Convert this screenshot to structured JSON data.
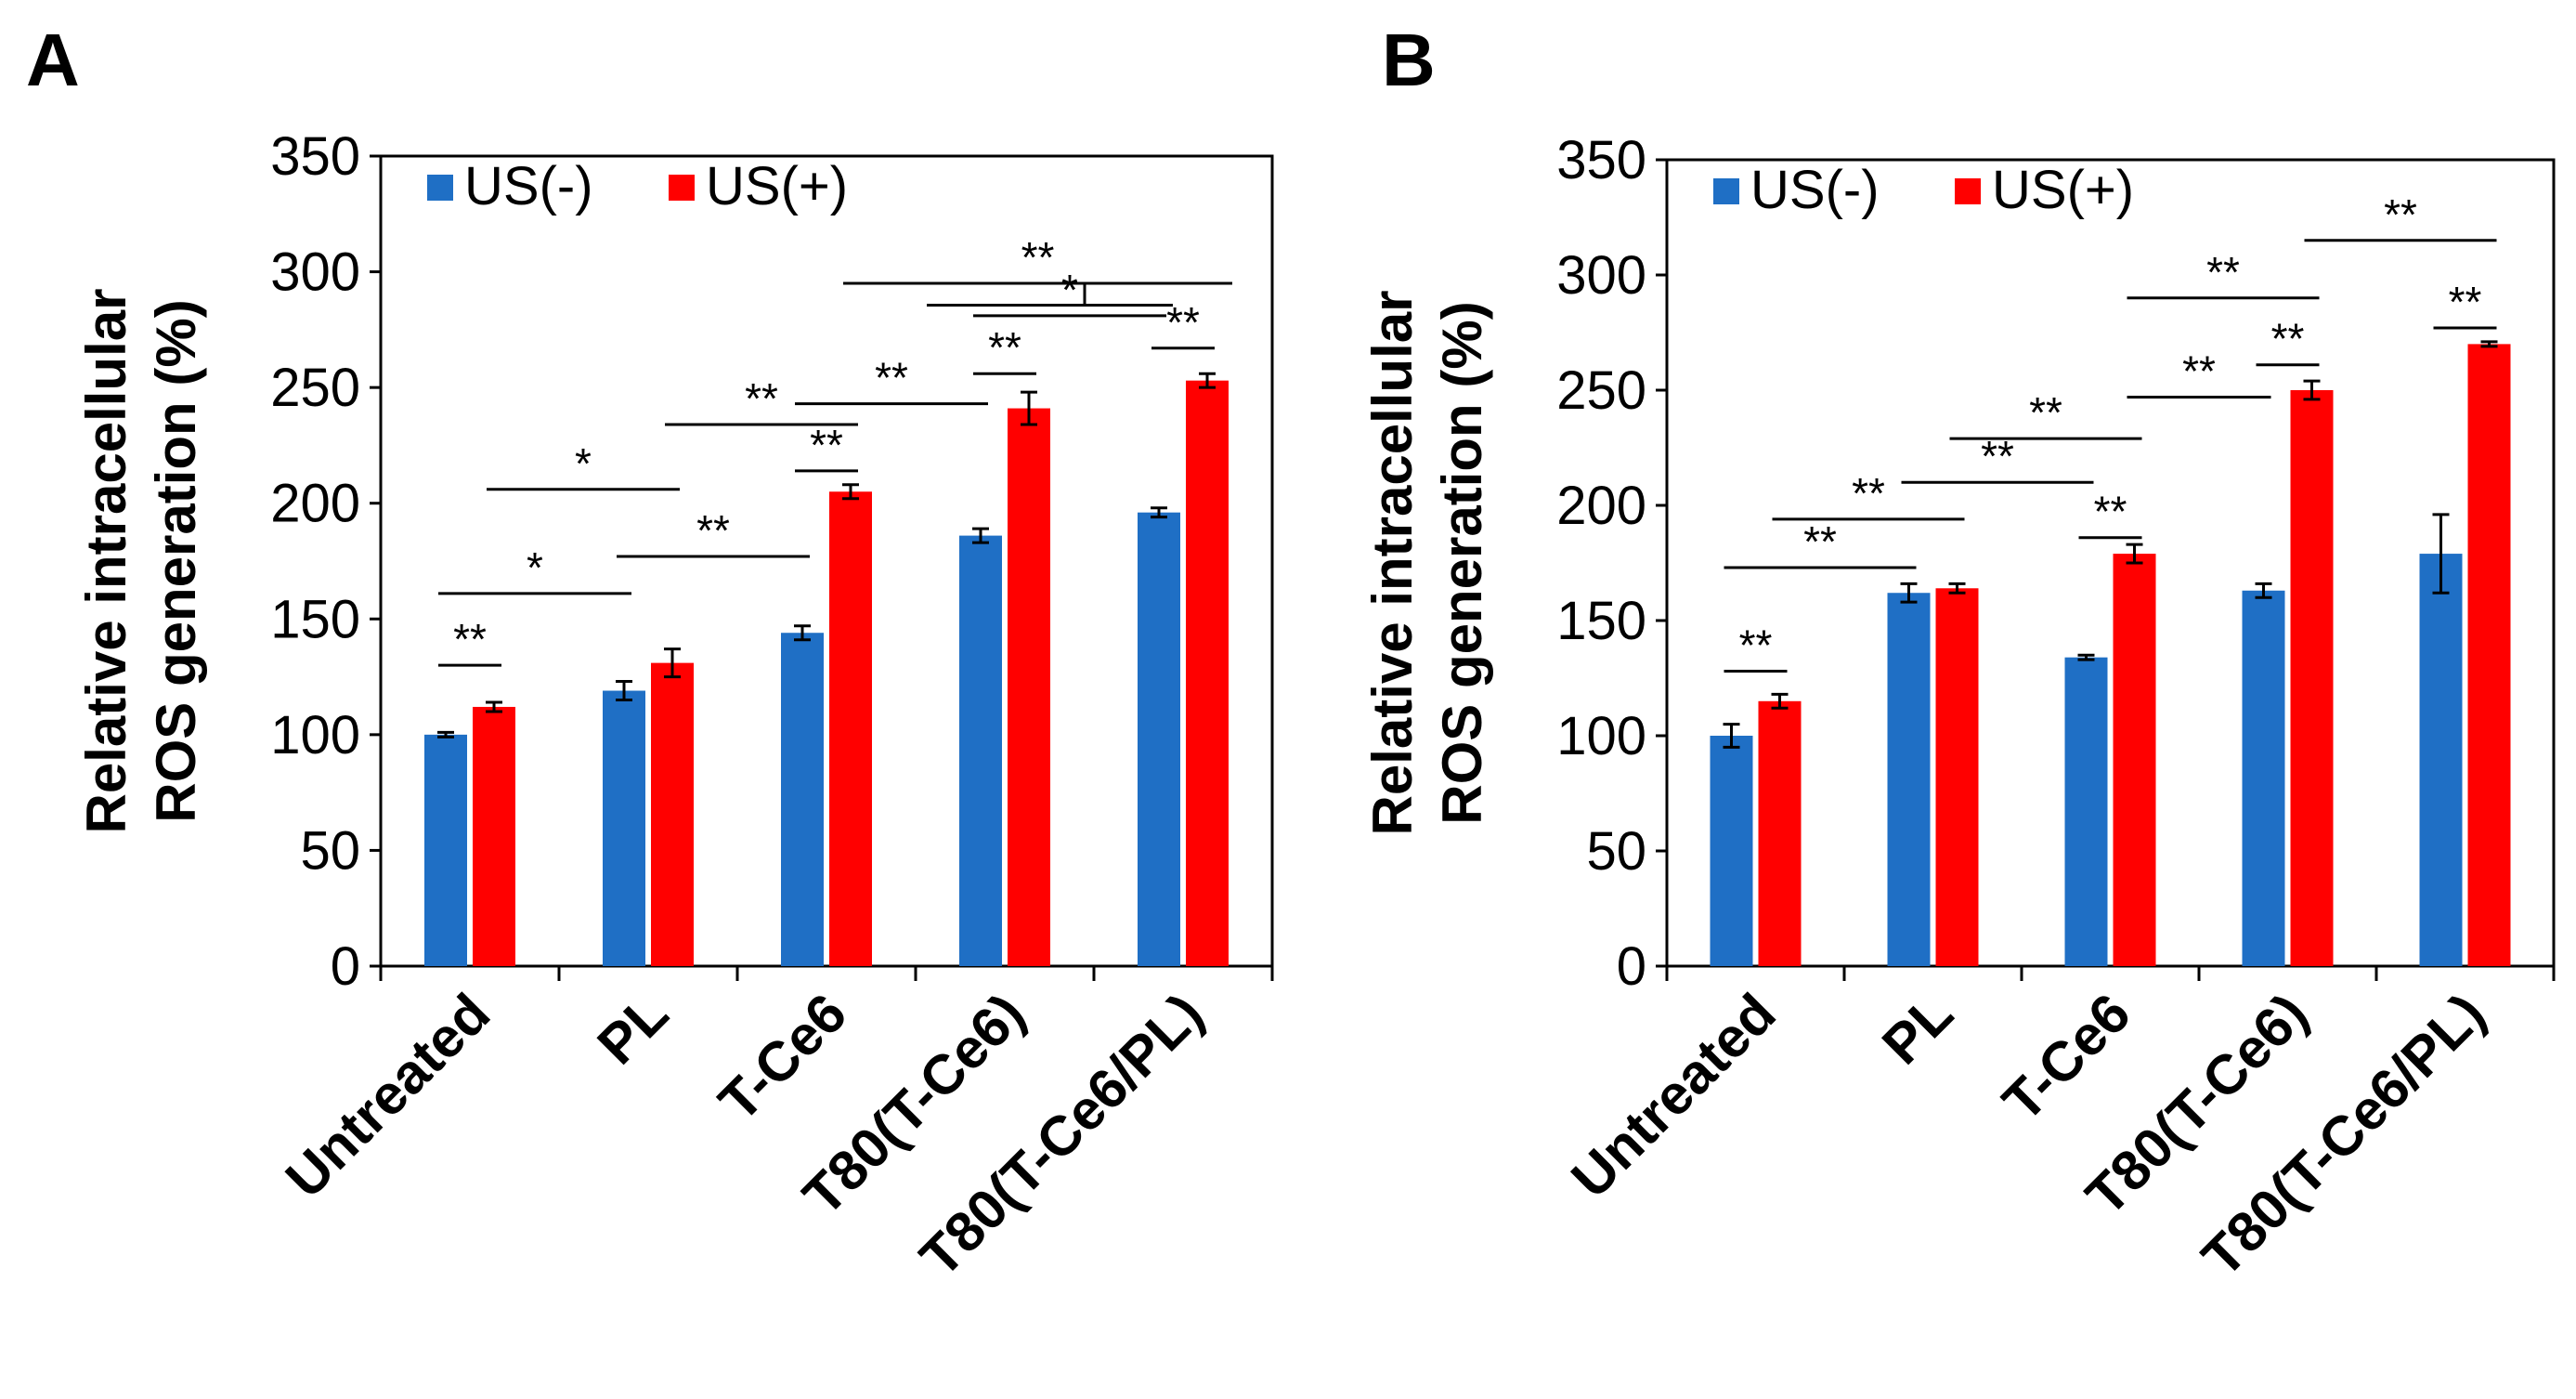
{
  "chart_data": [
    {
      "panel": "A",
      "type": "bar",
      "title": "",
      "xlabel": "",
      "ylabel": "Relative intracellular ROS generation (%)",
      "ylabel_lines": [
        "Relative intracellular",
        "ROS generation (%)"
      ],
      "ylim": [
        0,
        350
      ],
      "yticks": [
        0,
        50,
        100,
        150,
        200,
        250,
        300,
        350
      ],
      "legend_position": "top-left",
      "categories": [
        "Untreated",
        "PL",
        "T-Ce6",
        "T80(T-Ce6)",
        "T80(T-Ce6/PL)"
      ],
      "series": [
        {
          "name": "US(-)",
          "color": "#1f6fc5",
          "values": [
            100,
            119,
            144,
            186,
            196
          ],
          "errors": [
            1,
            4,
            3,
            3,
            2
          ]
        },
        {
          "name": "US(+)",
          "color": "#ff0000",
          "values": [
            112,
            131,
            205,
            241,
            253
          ],
          "errors": [
            2,
            6,
            3,
            7,
            3
          ]
        }
      ],
      "annotations": [
        {
          "text": "**",
          "x1": [
            0,
            0
          ],
          "x2": [
            0,
            1
          ],
          "y": 130
        },
        {
          "text": "*",
          "x1": [
            0,
            0
          ],
          "x2": [
            1,
            0
          ],
          "y": 161
        },
        {
          "text": "**",
          "x1": [
            1,
            0
          ],
          "x2": [
            2,
            0
          ],
          "y": 177
        },
        {
          "text": "*",
          "x1": [
            0,
            1
          ],
          "x2": [
            1,
            1
          ],
          "y": 206
        },
        {
          "text": "**",
          "x1": [
            2,
            0
          ],
          "x2": [
            2,
            1
          ],
          "y": 214
        },
        {
          "text": "**",
          "x1": [
            1,
            1
          ],
          "x2": [
            2,
            1
          ],
          "y": 234
        },
        {
          "text": "**",
          "x1": [
            2,
            0
          ],
          "x2": [
            3,
            0
          ],
          "y": 243
        },
        {
          "text": "**",
          "x1": [
            3,
            0
          ],
          "x2": [
            3,
            1
          ],
          "y": 256
        },
        {
          "text": "**",
          "x1": [
            4,
            0
          ],
          "x2": [
            4,
            1
          ],
          "y": 267
        },
        {
          "text": "*",
          "x1": [
            3,
            0
          ],
          "x2": [
            4,
            0
          ],
          "y": 281
        },
        {
          "text": "**",
          "x1": [
            2,
            1
          ],
          "x2": [
            4,
            0.5
          ],
          "y": 295,
          "bracket": true,
          "x_inner": [
            3,
            1
          ],
          "y_inner": 296
        }
      ]
    },
    {
      "panel": "B",
      "type": "bar",
      "title": "",
      "xlabel": "",
      "ylabel": "Relative intracellular ROS generation (%)",
      "ylabel_lines": [
        "Relative intracellular",
        "ROS generation (%)"
      ],
      "ylim": [
        0,
        350
      ],
      "yticks": [
        0,
        50,
        100,
        150,
        200,
        250,
        300,
        350
      ],
      "legend_position": "top-left",
      "categories": [
        "Untreated",
        "PL",
        "T-Ce6",
        "T80(T-Ce6)",
        "T80(T-Ce6/PL)"
      ],
      "series": [
        {
          "name": "US(-)",
          "color": "#1f6fc5",
          "values": [
            100,
            162,
            134,
            163,
            179
          ],
          "errors": [
            5,
            4,
            1,
            3,
            17
          ]
        },
        {
          "name": "US(+)",
          "color": "#ff0000",
          "values": [
            115,
            164,
            179,
            250,
            270
          ],
          "errors": [
            3,
            2,
            4,
            4,
            1
          ]
        }
      ],
      "annotations": [
        {
          "text": "**",
          "x1": [
            0,
            0
          ],
          "x2": [
            0,
            1
          ],
          "y": 128
        },
        {
          "text": "**",
          "x1": [
            0,
            0
          ],
          "x2": [
            1,
            0
          ],
          "y": 173
        },
        {
          "text": "**",
          "x1": [
            0,
            1
          ],
          "x2": [
            1,
            1
          ],
          "y": 194
        },
        {
          "text": "**",
          "x1": [
            2,
            0
          ],
          "x2": [
            2,
            1
          ],
          "y": 186
        },
        {
          "text": "**",
          "x1": [
            1,
            0
          ],
          "x2": [
            2,
            0
          ],
          "y": 210
        },
        {
          "text": "**",
          "x1": [
            1,
            1
          ],
          "x2": [
            2,
            1
          ],
          "y": 229
        },
        {
          "text": "**",
          "x1": [
            2,
            1
          ],
          "x2": [
            3,
            0
          ],
          "y": 247
        },
        {
          "text": "**",
          "x1": [
            3,
            0
          ],
          "x2": [
            3,
            1
          ],
          "y": 261
        },
        {
          "text": "**",
          "x1": [
            2,
            1
          ],
          "x2": [
            3,
            1
          ],
          "y": 290
        },
        {
          "text": "**",
          "x1": [
            4,
            0
          ],
          "x2": [
            4,
            1
          ],
          "y": 277
        },
        {
          "text": "**",
          "x1": [
            3,
            1
          ],
          "x2": [
            4,
            1
          ],
          "y": 315
        }
      ]
    }
  ]
}
